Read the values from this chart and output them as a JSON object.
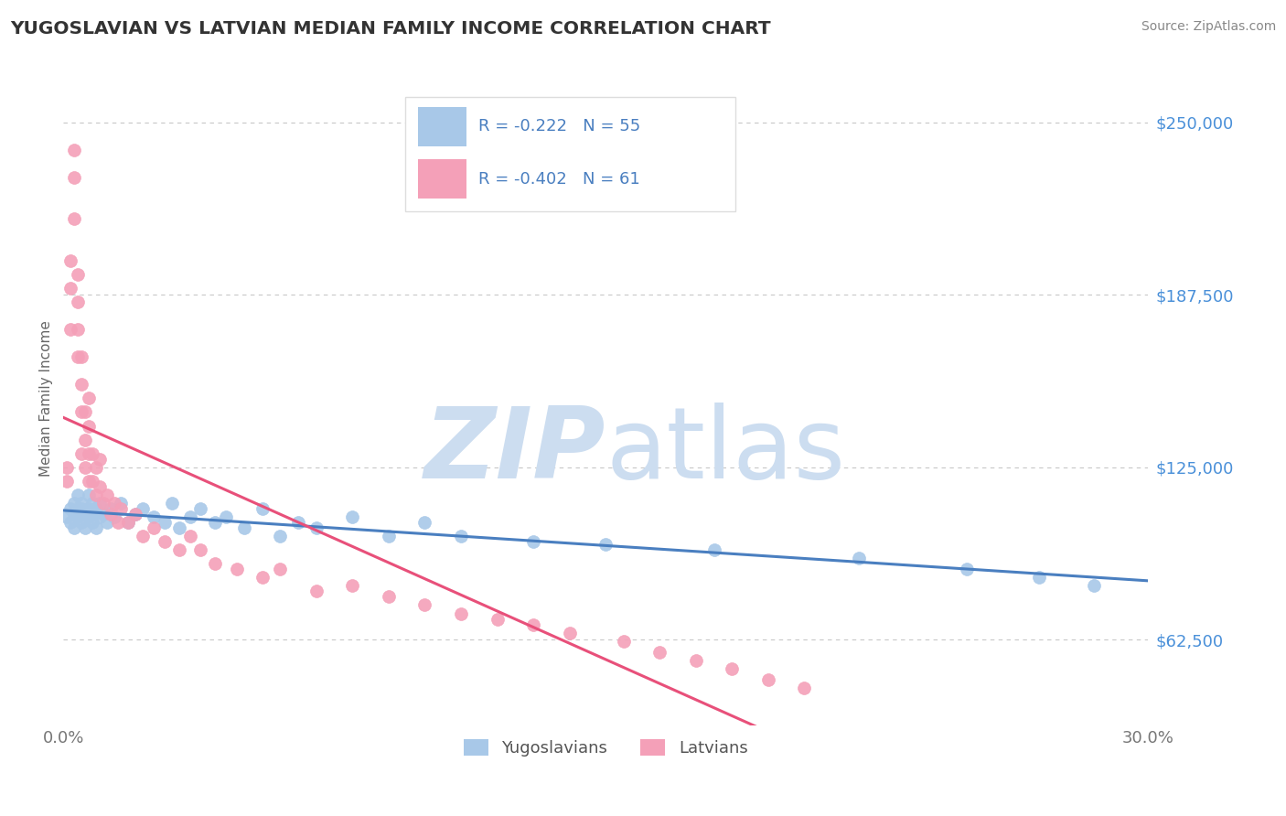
{
  "title": "YUGOSLAVIAN VS LATVIAN MEDIAN FAMILY INCOME CORRELATION CHART",
  "source": "Source: ZipAtlas.com",
  "ylabel": "Median Family Income",
  "yticks": [
    62500,
    125000,
    187500,
    250000
  ],
  "ytick_labels": [
    "$62,500",
    "$125,000",
    "$187,500",
    "$250,000"
  ],
  "xmin": 0.0,
  "xmax": 0.3,
  "ymin": 31250,
  "ymax": 268750,
  "legend_R_yugo": "R = -0.222",
  "legend_N_yugo": "N = 55",
  "legend_R_latv": "R = -0.402",
  "legend_N_latv": "N = 61",
  "series_yugo_label": "Yugoslavians",
  "series_latv_label": "Latvians",
  "color_yugo": "#a8c8e8",
  "color_latv": "#f4a0b8",
  "line_color_yugo": "#4a7fc0",
  "line_color_latv": "#e8507a",
  "watermark_zip": "ZIP",
  "watermark_atlas": "atlas",
  "watermark_color": "#ccddf0",
  "background_color": "#ffffff",
  "grid_color": "#c8c8c8",
  "title_color": "#333333",
  "right_axis_color": "#4a90d9",
  "source_color": "#888888",
  "yugo_x": [
    0.001,
    0.002,
    0.002,
    0.003,
    0.003,
    0.003,
    0.004,
    0.004,
    0.005,
    0.005,
    0.005,
    0.006,
    0.006,
    0.007,
    0.007,
    0.007,
    0.008,
    0.008,
    0.008,
    0.009,
    0.009,
    0.01,
    0.01,
    0.011,
    0.012,
    0.013,
    0.014,
    0.016,
    0.018,
    0.02,
    0.022,
    0.025,
    0.028,
    0.03,
    0.032,
    0.035,
    0.038,
    0.042,
    0.045,
    0.05,
    0.055,
    0.06,
    0.065,
    0.07,
    0.08,
    0.09,
    0.1,
    0.11,
    0.13,
    0.15,
    0.18,
    0.22,
    0.25,
    0.27,
    0.285
  ],
  "yugo_y": [
    107000,
    110000,
    105000,
    112000,
    108000,
    103000,
    115000,
    107000,
    110000,
    105000,
    112000,
    108000,
    103000,
    115000,
    107000,
    110000,
    112000,
    105000,
    108000,
    103000,
    110000,
    107000,
    112000,
    108000,
    105000,
    110000,
    107000,
    112000,
    105000,
    108000,
    110000,
    107000,
    105000,
    112000,
    103000,
    107000,
    110000,
    105000,
    107000,
    103000,
    110000,
    100000,
    105000,
    103000,
    107000,
    100000,
    105000,
    100000,
    98000,
    97000,
    95000,
    92000,
    88000,
    85000,
    82000
  ],
  "latv_x": [
    0.001,
    0.001,
    0.002,
    0.002,
    0.002,
    0.003,
    0.003,
    0.003,
    0.004,
    0.004,
    0.004,
    0.004,
    0.005,
    0.005,
    0.005,
    0.005,
    0.006,
    0.006,
    0.006,
    0.007,
    0.007,
    0.007,
    0.007,
    0.008,
    0.008,
    0.009,
    0.009,
    0.01,
    0.01,
    0.011,
    0.012,
    0.013,
    0.014,
    0.015,
    0.016,
    0.018,
    0.02,
    0.022,
    0.025,
    0.028,
    0.032,
    0.035,
    0.038,
    0.042,
    0.048,
    0.055,
    0.06,
    0.07,
    0.08,
    0.09,
    0.1,
    0.11,
    0.12,
    0.13,
    0.14,
    0.155,
    0.165,
    0.175,
    0.185,
    0.195,
    0.205
  ],
  "latv_y": [
    125000,
    120000,
    200000,
    190000,
    175000,
    240000,
    230000,
    215000,
    165000,
    175000,
    185000,
    195000,
    130000,
    145000,
    155000,
    165000,
    125000,
    135000,
    145000,
    120000,
    130000,
    140000,
    150000,
    120000,
    130000,
    115000,
    125000,
    118000,
    128000,
    112000,
    115000,
    108000,
    112000,
    105000,
    110000,
    105000,
    108000,
    100000,
    103000,
    98000,
    95000,
    100000,
    95000,
    90000,
    88000,
    85000,
    88000,
    80000,
    82000,
    78000,
    75000,
    72000,
    70000,
    68000,
    65000,
    62000,
    58000,
    55000,
    52000,
    48000,
    45000
  ]
}
